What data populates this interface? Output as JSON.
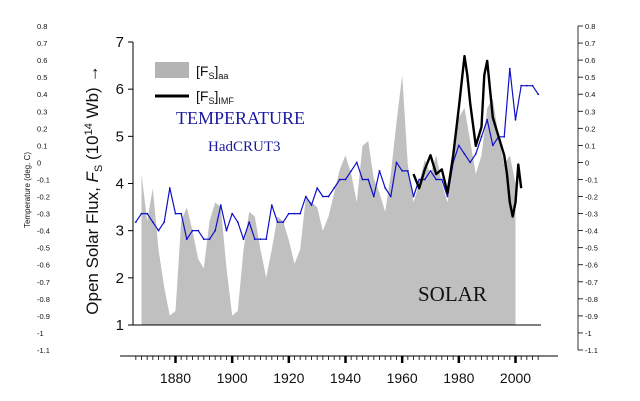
{
  "chart_data": {
    "type": "area+line",
    "title": "",
    "xlabel": "",
    "x_range": [
      1865,
      2009
    ],
    "x_ticks": [
      1880,
      1900,
      1920,
      1940,
      1960,
      1980,
      2000
    ],
    "left_axis": {
      "label_main": "Open Solar Flux, ",
      "label_symbol": "F",
      "label_subscript": "S",
      "label_units_pre": " (10",
      "label_units_exp": "14",
      "label_units_post": " Wb)",
      "arrow": "→",
      "range": [
        1,
        7
      ],
      "ticks": [
        1,
        2,
        3,
        4,
        5,
        6,
        7
      ]
    },
    "right_axis": {
      "label": "Temperature (deg. C)",
      "range": [
        -1.1,
        0.8
      ],
      "ticks": [
        "-1.1",
        "-1",
        "-0.9",
        "-0.8",
        "-0.7",
        "-0.6",
        "-0.5",
        "-0.4",
        "-0.3",
        "-0.2",
        "-0.1",
        "0",
        "0.1",
        "0.2",
        "0.3",
        "0.4",
        "0.5",
        "0.6",
        "0.7",
        "0.8"
      ]
    },
    "legend": [
      {
        "key": "aa",
        "base": "[F",
        "sub1": "S",
        "close": "]",
        "sub2": "aa",
        "style": "grey-fill"
      },
      {
        "key": "imf",
        "base": "[F",
        "sub1": "S",
        "close": "]",
        "sub2": "IMF",
        "style": "black-line"
      }
    ],
    "annotations": {
      "temperature": "TEMPERATURE",
      "dataset": "HadCRUT3",
      "solar": "SOLAR"
    },
    "series": [
      {
        "name": "[FS]aa open solar flux (Wb x 10^14)",
        "type": "area",
        "color": "#c0c0c0",
        "x": [
          1868,
          1870,
          1872,
          1874,
          1876,
          1878,
          1880,
          1882,
          1884,
          1886,
          1888,
          1890,
          1892,
          1894,
          1896,
          1898,
          1900,
          1902,
          1904,
          1906,
          1908,
          1910,
          1912,
          1914,
          1916,
          1918,
          1920,
          1922,
          1924,
          1926,
          1928,
          1930,
          1932,
          1934,
          1936,
          1938,
          1940,
          1942,
          1944,
          1946,
          1948,
          1950,
          1952,
          1954,
          1956,
          1958,
          1960,
          1962,
          1964,
          1966,
          1968,
          1970,
          1972,
          1974,
          1976,
          1978,
          1980,
          1982,
          1984,
          1986,
          1988,
          1990,
          1992,
          1994,
          1996,
          1998,
          2000
        ],
        "values": [
          4.2,
          3.2,
          3.9,
          2.6,
          1.8,
          1.2,
          1.3,
          3.2,
          3.5,
          3.0,
          2.4,
          2.2,
          3.2,
          3.6,
          3.5,
          2.2,
          1.2,
          1.3,
          2.6,
          3.4,
          3.3,
          2.6,
          2.0,
          2.6,
          3.3,
          3.2,
          2.8,
          2.3,
          2.6,
          3.7,
          3.6,
          3.5,
          3.0,
          3.3,
          3.8,
          4.3,
          4.6,
          4.2,
          3.6,
          4.8,
          4.9,
          4.1,
          3.8,
          3.4,
          4.2,
          5.3,
          6.3,
          4.4,
          3.6,
          4.0,
          4.5,
          4.2,
          4.6,
          4.0,
          3.6,
          4.5,
          5.4,
          5.6,
          4.9,
          4.2,
          4.6,
          5.6,
          5.8,
          5.0,
          4.4,
          4.6,
          4.0
        ]
      },
      {
        "name": "[FS]IMF open solar flux (Wb x 10^14)",
        "type": "line",
        "color": "#000000",
        "x": [
          1964,
          1966,
          1968,
          1970,
          1972,
          1974,
          1976,
          1978,
          1980,
          1982,
          1983,
          1984,
          1986,
          1988,
          1989,
          1990,
          1991,
          1992,
          1994,
          1996,
          1997,
          1998,
          1999,
          2000,
          2001,
          2002
        ],
        "values": [
          4.2,
          3.9,
          4.3,
          4.6,
          4.2,
          4.3,
          3.8,
          4.6,
          5.6,
          6.7,
          6.3,
          5.7,
          4.8,
          5.2,
          6.3,
          6.6,
          6.0,
          5.4,
          5.0,
          4.6,
          4.2,
          3.6,
          3.3,
          3.6,
          4.4,
          3.9
        ]
      },
      {
        "name": "HadCRUT3 temperature anomaly (deg. C)",
        "type": "line",
        "color": "#1010c8",
        "x": [
          1866,
          1868,
          1870,
          1872,
          1874,
          1876,
          1878,
          1880,
          1882,
          1884,
          1886,
          1888,
          1890,
          1892,
          1894,
          1896,
          1898,
          1900,
          1902,
          1904,
          1906,
          1908,
          1910,
          1912,
          1914,
          1916,
          1918,
          1920,
          1922,
          1924,
          1926,
          1928,
          1930,
          1932,
          1934,
          1936,
          1938,
          1940,
          1942,
          1944,
          1946,
          1948,
          1950,
          1952,
          1954,
          1956,
          1958,
          1960,
          1962,
          1964,
          1966,
          1968,
          1970,
          1972,
          1974,
          1976,
          1978,
          1980,
          1982,
          1984,
          1986,
          1988,
          1990,
          1992,
          1994,
          1996,
          1998,
          2000,
          2002,
          2004,
          2006,
          2008
        ],
        "values": [
          -0.35,
          -0.3,
          -0.3,
          -0.35,
          -0.4,
          -0.35,
          -0.15,
          -0.3,
          -0.3,
          -0.45,
          -0.4,
          -0.4,
          -0.45,
          -0.45,
          -0.4,
          -0.25,
          -0.4,
          -0.3,
          -0.35,
          -0.45,
          -0.35,
          -0.45,
          -0.45,
          -0.45,
          -0.25,
          -0.35,
          -0.35,
          -0.3,
          -0.3,
          -0.3,
          -0.2,
          -0.25,
          -0.15,
          -0.2,
          -0.2,
          -0.15,
          -0.1,
          -0.1,
          -0.05,
          0.0,
          -0.1,
          -0.1,
          -0.2,
          -0.05,
          -0.15,
          -0.2,
          0.0,
          -0.05,
          -0.05,
          -0.2,
          -0.1,
          -0.1,
          -0.05,
          -0.1,
          -0.1,
          -0.2,
          0.0,
          0.1,
          0.05,
          0.0,
          0.05,
          0.15,
          0.25,
          0.1,
          0.15,
          0.15,
          0.55,
          0.25,
          0.45,
          0.45,
          0.45,
          0.4
        ]
      }
    ]
  }
}
